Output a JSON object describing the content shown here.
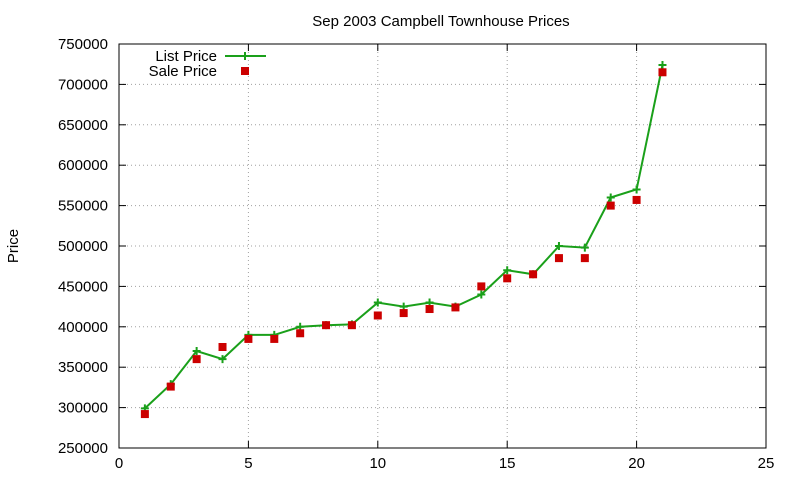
{
  "chart_data": {
    "type": "line",
    "title": "Sep 2003 Campbell Townhouse Prices",
    "xlabel": "",
    "ylabel": "Price",
    "xlim": [
      0,
      25
    ],
    "ylim": [
      250000,
      750000
    ],
    "xticks": [
      0,
      5,
      10,
      15,
      20,
      25
    ],
    "yticks": [
      250000,
      300000,
      350000,
      400000,
      450000,
      500000,
      550000,
      600000,
      650000,
      700000,
      750000
    ],
    "grid": true,
    "legend_position": "top-left",
    "series": [
      {
        "name": "List Price",
        "style": "line+plus",
        "color": "#1aa01a",
        "x": [
          1,
          2,
          3,
          4,
          5,
          6,
          7,
          8,
          9,
          10,
          11,
          12,
          13,
          14,
          15,
          16,
          17,
          18,
          19,
          20,
          21
        ],
        "values": [
          299000,
          329000,
          370000,
          360000,
          390000,
          390000,
          400000,
          402000,
          403000,
          430000,
          425000,
          430000,
          425000,
          440000,
          470000,
          465000,
          500000,
          498000,
          560000,
          570000,
          724000
        ]
      },
      {
        "name": "Sale Price",
        "style": "square",
        "color": "#cc0000",
        "x": [
          1,
          2,
          3,
          4,
          5,
          6,
          7,
          8,
          9,
          10,
          11,
          12,
          13,
          14,
          15,
          16,
          17,
          18,
          19,
          20,
          21
        ],
        "values": [
          292000,
          326000,
          360000,
          375000,
          385000,
          385000,
          392000,
          402000,
          402000,
          414000,
          417000,
          422000,
          424000,
          450000,
          460000,
          465000,
          485000,
          485000,
          550000,
          557000,
          715000
        ]
      }
    ]
  }
}
